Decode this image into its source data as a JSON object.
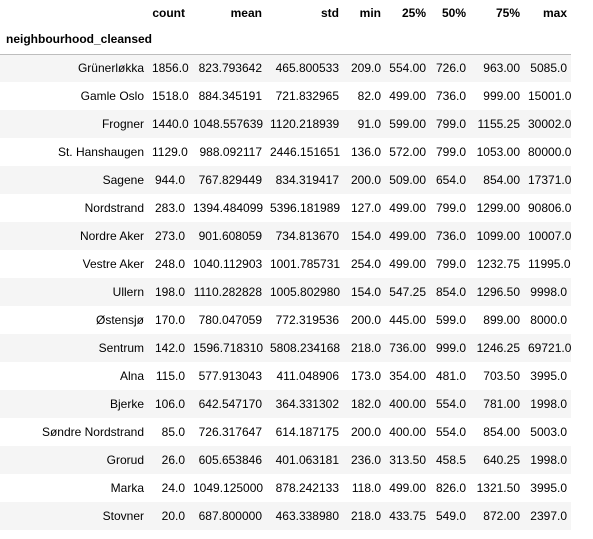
{
  "table": {
    "index_name": "neighbourhood_cleansed",
    "columns": [
      "count",
      "mean",
      "std",
      "min",
      "25%",
      "50%",
      "75%",
      "max"
    ],
    "rows": [
      {
        "label": "Grünerløkka",
        "values": [
          "1856.0",
          "823.793642",
          "465.800533",
          "209.0",
          "554.00",
          "726.0",
          "963.00",
          "5085.0"
        ]
      },
      {
        "label": "Gamle Oslo",
        "values": [
          "1518.0",
          "884.345191",
          "721.832965",
          "82.0",
          "499.00",
          "736.0",
          "999.00",
          "15001.0"
        ]
      },
      {
        "label": "Frogner",
        "values": [
          "1440.0",
          "1048.557639",
          "1120.218939",
          "91.0",
          "599.00",
          "799.0",
          "1155.25",
          "30002.0"
        ]
      },
      {
        "label": "St. Hanshaugen",
        "values": [
          "1129.0",
          "988.092117",
          "2446.151651",
          "136.0",
          "572.00",
          "799.0",
          "1053.00",
          "80000.0"
        ]
      },
      {
        "label": "Sagene",
        "values": [
          "944.0",
          "767.829449",
          "834.319417",
          "200.0",
          "509.00",
          "654.0",
          "854.00",
          "17371.0"
        ]
      },
      {
        "label": "Nordstrand",
        "values": [
          "283.0",
          "1394.484099",
          "5396.181989",
          "127.0",
          "499.00",
          "799.0",
          "1299.00",
          "90806.0"
        ]
      },
      {
        "label": "Nordre Aker",
        "values": [
          "273.0",
          "901.608059",
          "734.813670",
          "154.0",
          "499.00",
          "736.0",
          "1099.00",
          "10007.0"
        ]
      },
      {
        "label": "Vestre Aker",
        "values": [
          "248.0",
          "1040.112903",
          "1001.785731",
          "254.0",
          "499.00",
          "799.0",
          "1232.75",
          "11995.0"
        ]
      },
      {
        "label": "Ullern",
        "values": [
          "198.0",
          "1110.282828",
          "1005.802980",
          "154.0",
          "547.25",
          "854.0",
          "1296.50",
          "9998.0"
        ]
      },
      {
        "label": "Østensjø",
        "values": [
          "170.0",
          "780.047059",
          "772.319536",
          "200.0",
          "445.00",
          "599.0",
          "899.00",
          "8000.0"
        ]
      },
      {
        "label": "Sentrum",
        "values": [
          "142.0",
          "1596.718310",
          "5808.234168",
          "218.0",
          "736.00",
          "999.0",
          "1246.25",
          "69721.0"
        ]
      },
      {
        "label": "Alna",
        "values": [
          "115.0",
          "577.913043",
          "411.048906",
          "173.0",
          "354.00",
          "481.0",
          "703.50",
          "3995.0"
        ]
      },
      {
        "label": "Bjerke",
        "values": [
          "106.0",
          "642.547170",
          "364.331302",
          "182.0",
          "400.00",
          "554.0",
          "781.00",
          "1998.0"
        ]
      },
      {
        "label": "Søndre Nordstrand",
        "values": [
          "85.0",
          "726.317647",
          "614.187175",
          "200.0",
          "400.00",
          "554.0",
          "854.00",
          "5003.0"
        ]
      },
      {
        "label": "Grorud",
        "values": [
          "26.0",
          "605.653846",
          "401.063181",
          "236.0",
          "313.50",
          "458.5",
          "640.25",
          "1998.0"
        ]
      },
      {
        "label": "Marka",
        "values": [
          "24.0",
          "1049.125000",
          "878.242133",
          "118.0",
          "499.00",
          "826.0",
          "1321.50",
          "3995.0"
        ]
      },
      {
        "label": "Stovner",
        "values": [
          "20.0",
          "687.800000",
          "463.338980",
          "218.0",
          "433.75",
          "549.0",
          "872.00",
          "2397.0"
        ]
      }
    ]
  }
}
